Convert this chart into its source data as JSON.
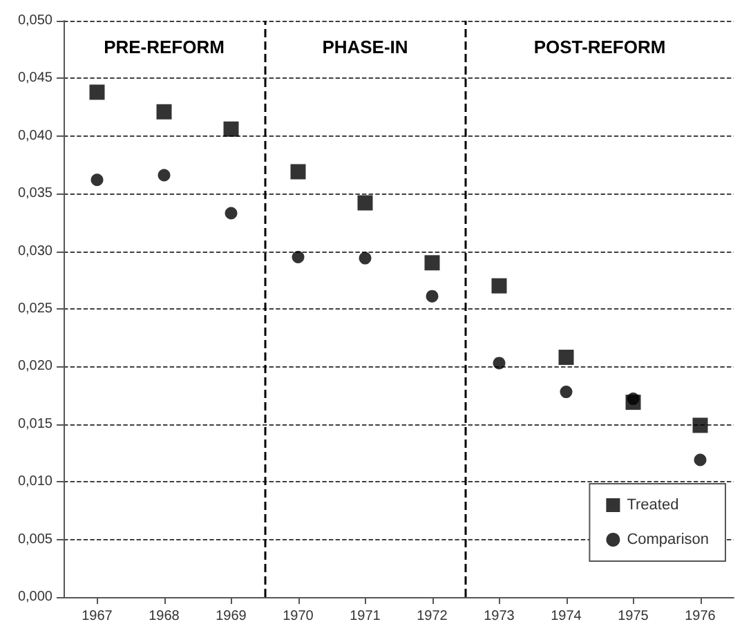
{
  "chart_data": {
    "type": "scatter",
    "x": [
      1967,
      1968,
      1969,
      1970,
      1971,
      1972,
      1973,
      1974,
      1975,
      1976
    ],
    "series": [
      {
        "name": "Treated",
        "color": "#000000",
        "marker": "square",
        "values": [
          0.0438,
          0.0421,
          0.0406,
          0.0369,
          0.0342,
          0.029,
          0.027,
          0.0208,
          0.0169,
          0.0149
        ]
      },
      {
        "name": "Comparison",
        "color": "#000000",
        "marker": "circle",
        "values": [
          0.0362,
          0.0366,
          0.0333,
          0.0295,
          0.0294,
          0.0261,
          0.0203,
          0.0178,
          0.0172,
          0.0119
        ]
      }
    ],
    "xlim": [
      1966.5,
      1976.5
    ],
    "xticks": [
      1967,
      1968,
      1969,
      1970,
      1971,
      1972,
      1973,
      1974,
      1975,
      1976
    ],
    "ylim": [
      0,
      0.05
    ],
    "yticks": [
      {
        "value": 0,
        "label": "0,000"
      },
      {
        "value": 0.005,
        "label": "0,005"
      },
      {
        "value": 0.01,
        "label": "0,010"
      },
      {
        "value": 0.015,
        "label": "0,015"
      },
      {
        "value": 0.02,
        "label": "0,020"
      },
      {
        "value": 0.025,
        "label": "0,025"
      },
      {
        "value": 0.03,
        "label": "0,030"
      },
      {
        "value": 0.035,
        "label": "0,035"
      },
      {
        "value": 0.04,
        "label": "0,040"
      },
      {
        "value": 0.045,
        "label": "0,045"
      },
      {
        "value": 0.05,
        "label": "0,050"
      }
    ],
    "ref_lines": [
      {
        "axis": "x",
        "value": 1969.5,
        "color": "#000000",
        "line_style": "dashed"
      },
      {
        "axis": "x",
        "value": 1972.5,
        "color": "#000000",
        "line_style": "dashed"
      }
    ],
    "annotations": [
      "PRE-REFORM",
      "PHASE-IN",
      "POST-REFORM"
    ],
    "grid": "y",
    "legend": "bottom right"
  }
}
